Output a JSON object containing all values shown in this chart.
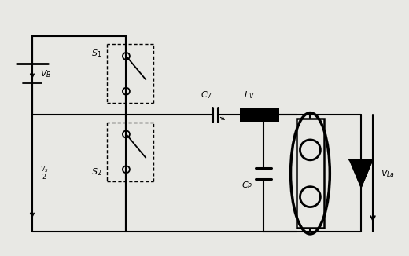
{
  "bg_color": "#e8e8e4",
  "line_color": "black",
  "lw": 1.5,
  "fig_w": 5.2,
  "fig_h": 3.26,
  "dpi": 100,
  "labels": {
    "VB": "$V_B$",
    "VS2": "$\\frac{V_S}{2}$",
    "S1": "$S_1$",
    "S2": "$S_2$",
    "CV": "$C_V$",
    "LV": "$L_V$",
    "CP": "$C_P$",
    "VLa": "$V_{La}$"
  }
}
